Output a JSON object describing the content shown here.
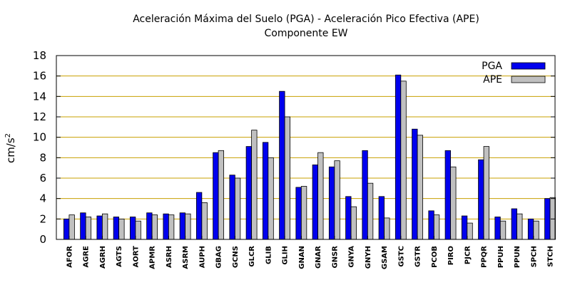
{
  "chart_data": {
    "type": "bar",
    "title": "Aceleración Máxima del Suelo (PGA) -  Aceleración Pico Efectiva (APE)",
    "subtitle": "Componente EW",
    "xlabel": "",
    "ylabel": "cm/s",
    "ylabel_superscript": "2",
    "ylim": [
      0,
      18
    ],
    "yticks": [
      0,
      2,
      4,
      6,
      8,
      10,
      12,
      14,
      16,
      18
    ],
    "grid": true,
    "legend_position": "top-right",
    "categories": [
      "AFOR",
      "AGRE",
      "AGRH",
      "AGTS",
      "AORT",
      "APMR",
      "ASRH",
      "ASRM",
      "AUPH",
      "GBAG",
      "GCNS",
      "GLCR",
      "GLIB",
      "GLIH",
      "GNAN",
      "GNAR",
      "GNSR",
      "GNYA",
      "GNYH",
      "GSAM",
      "GSTC",
      "GSTR",
      "PCOB",
      "PIRO",
      "PJCR",
      "PPQR",
      "PPUH",
      "PPUN",
      "SPCH",
      "STCH"
    ],
    "series": [
      {
        "name": "PGA",
        "color": "#0000ee",
        "values": [
          2.0,
          2.6,
          2.3,
          2.2,
          2.2,
          2.6,
          2.5,
          2.6,
          4.6,
          8.5,
          6.3,
          9.1,
          9.5,
          14.5,
          5.1,
          7.3,
          7.1,
          4.2,
          8.7,
          4.2,
          16.1,
          10.8,
          2.8,
          8.7,
          2.3,
          7.8,
          2.2,
          3.0,
          2.0,
          4.0
        ]
      },
      {
        "name": "APE",
        "color": "#c0c0c0",
        "values": [
          2.4,
          2.2,
          2.5,
          2.0,
          1.8,
          2.4,
          2.4,
          2.5,
          3.6,
          8.7,
          6.0,
          10.7,
          8.0,
          12.0,
          5.2,
          8.5,
          7.7,
          3.2,
          5.5,
          2.1,
          15.5,
          10.2,
          2.4,
          7.1,
          1.6,
          9.1,
          1.8,
          2.5,
          1.8,
          4.1
        ]
      }
    ]
  }
}
